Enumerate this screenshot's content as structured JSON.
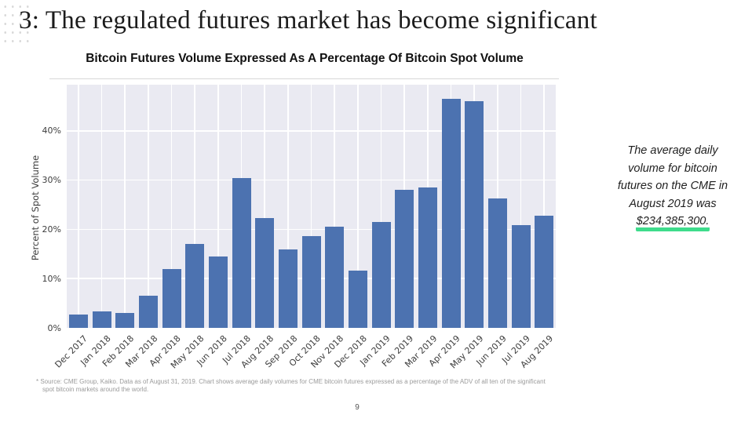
{
  "slide": {
    "title": "3: The regulated futures market has become significant",
    "page_number": "9",
    "footnote": "* Source: CME Group, Kaiko. Data as of August 31, 2019. Chart shows average daily volumes for CME bitcoin futures expressed as a percentage of the ADV of all ten of the significant spot bitcoin markets around the world."
  },
  "annotation": {
    "lines": [
      "The average daily",
      "volume for bitcoin",
      "futures on the CME in",
      "August 2019 was"
    ],
    "highlight": "$234,385,300.",
    "highlight_color": "#3FDC8C"
  },
  "chart_data": {
    "type": "bar",
    "title": "Bitcoin Futures Volume Expressed As A Percentage Of Bitcoin Spot Volume",
    "xlabel": "",
    "ylabel": "Percent of Spot Volume",
    "categories": [
      "Dec 2017",
      "Jan 2018",
      "Feb 2018",
      "Mar 2018",
      "Apr 2018",
      "May 2018",
      "Jun 2018",
      "Jul 2018",
      "Aug 2018",
      "Sep 2018",
      "Oct 2018",
      "Nov 2018",
      "Dec 2018",
      "Jan 2019",
      "Feb 2019",
      "Mar 2019",
      "Apr 2019",
      "May 2019",
      "Jun 2019",
      "Jul 2019",
      "Aug 2019"
    ],
    "values": [
      2.7,
      3.4,
      3.0,
      6.5,
      12.0,
      17.0,
      14.5,
      30.4,
      22.3,
      16.0,
      18.7,
      20.6,
      11.6,
      21.5,
      28.1,
      28.6,
      46.5,
      46.0,
      26.3,
      20.8,
      22.8
    ],
    "yticks": [
      0,
      10,
      20,
      30,
      40
    ],
    "ytick_labels": [
      "0%",
      "10%",
      "20%",
      "30%",
      "40%"
    ],
    "ylim": [
      0,
      49.4
    ],
    "grid": "on",
    "legend": "none",
    "bar_color": "#4C72B0",
    "plot_bg": "#EAEAF2",
    "grid_color": "#FFFFFF"
  }
}
